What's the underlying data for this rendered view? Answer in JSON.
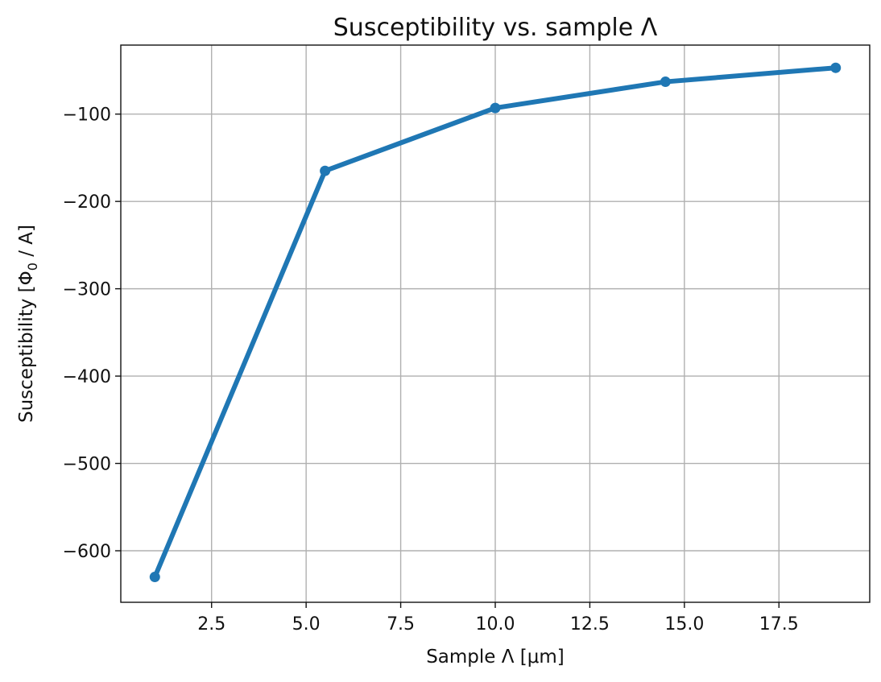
{
  "chart_data": {
    "type": "line",
    "title": "Susceptibility vs. sample Λ",
    "xlabel": "Sample Λ [μm]",
    "ylabel": {
      "main": "Susceptibility [Φ",
      "sub": "0",
      "tail": " / A]"
    },
    "xlim": [
      0.1,
      19.9
    ],
    "ylim": [
      -659,
      -21
    ],
    "xticks": [
      2.5,
      5.0,
      7.5,
      10.0,
      12.5,
      15.0,
      17.5
    ],
    "xtick_labels": [
      "2.5",
      "5.0",
      "7.5",
      "10.0",
      "12.5",
      "15.0",
      "17.5"
    ],
    "yticks": [
      -100,
      -200,
      -300,
      -400,
      -500,
      -600
    ],
    "ytick_labels": [
      "−100",
      "−200",
      "−300",
      "−400",
      "−500",
      "−600"
    ],
    "grid": true,
    "color": "#1f77b4",
    "series": [
      {
        "x": [
          1.0,
          5.5,
          10.0,
          14.5,
          19.0
        ],
        "y": [
          -630,
          -165,
          -93,
          -63,
          -47
        ]
      }
    ]
  }
}
